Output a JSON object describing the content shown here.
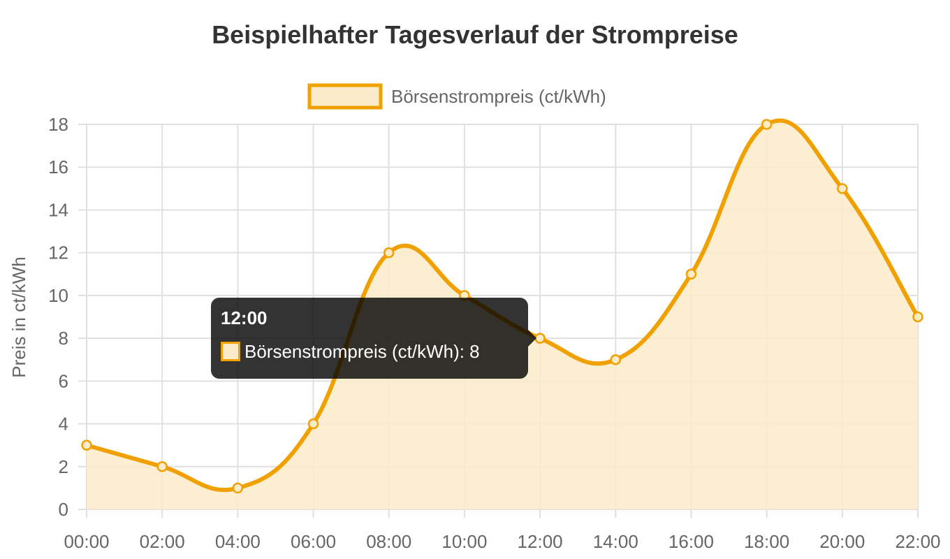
{
  "chart_data": {
    "type": "area",
    "title": "Beispielhafter Tagesverlauf der Strompreise",
    "xlabel": "",
    "ylabel": "Preis in ct/kWh",
    "categories": [
      "00:00",
      "02:00",
      "04:00",
      "06:00",
      "08:00",
      "10:00",
      "12:00",
      "14:00",
      "16:00",
      "18:00",
      "20:00",
      "22:00"
    ],
    "series": [
      {
        "name": "Börsenstrompreis (ct/kWh)",
        "values": [
          3,
          2,
          1,
          4,
          12,
          10,
          8,
          7,
          11,
          18,
          15,
          9
        ]
      }
    ],
    "ylim": [
      0,
      18
    ],
    "y_ticks": [
      0,
      2,
      4,
      6,
      8,
      10,
      12,
      14,
      16,
      18
    ],
    "grid": true,
    "legend_position": "top-center",
    "colors": {
      "line": "#f0a000",
      "fill": "#fcebc9",
      "grid": "#e0e0e0",
      "text": "#666666",
      "title": "#333333"
    }
  },
  "tooltip": {
    "title": "12:00",
    "label": "Börsenstrompreis (ct/kWh): 8",
    "category_index": 6
  }
}
